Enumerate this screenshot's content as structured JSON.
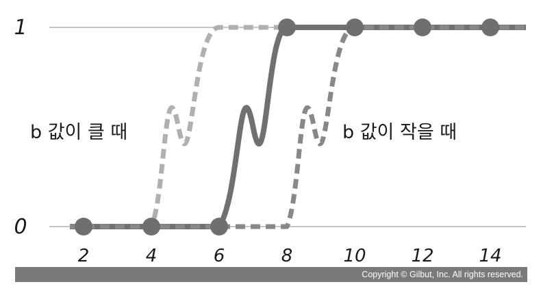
{
  "chart_data": {
    "type": "line",
    "x_ticks": [
      "2",
      "4",
      "6",
      "8",
      "10",
      "12",
      "14"
    ],
    "y_ticks": [
      "0",
      "1"
    ],
    "xlim": [
      2,
      14
    ],
    "ylim": [
      0,
      1
    ],
    "points": [
      {
        "x": 2,
        "y": 0
      },
      {
        "x": 4,
        "y": 0
      },
      {
        "x": 6,
        "y": 0
      },
      {
        "x": 8,
        "y": 1
      },
      {
        "x": 10,
        "y": 1
      },
      {
        "x": 12,
        "y": 1
      },
      {
        "x": 14,
        "y": 1
      }
    ],
    "series": [
      {
        "style": "dashed",
        "color": "#b0b0b0",
        "x": [
          2,
          4,
          4.4,
          5.2,
          6,
          14
        ],
        "y": [
          0,
          0,
          0.15,
          0.85,
          1,
          1
        ]
      },
      {
        "style": "solid",
        "color": "#707070",
        "x": [
          2,
          6,
          6.6,
          7.4,
          8,
          14
        ],
        "y": [
          0,
          0,
          0.15,
          0.85,
          1,
          1
        ]
      },
      {
        "style": "dashed",
        "color": "#888888",
        "x": [
          2,
          8,
          8.4,
          9.2,
          10,
          14
        ],
        "y": [
          0,
          0,
          0.15,
          0.85,
          1,
          1
        ]
      }
    ],
    "annotations": {
      "left": "b 값이 클 때",
      "right": "b 값이 작을 때"
    },
    "gridlines": [
      0,
      1
    ]
  },
  "footer": {
    "copyright": "Copyright © Gilbut, Inc. All rights reserved."
  },
  "colors": {
    "grid": "#b4b4b4",
    "dot": "#6f6f6f",
    "footer_bg": "#7a7a7a"
  }
}
